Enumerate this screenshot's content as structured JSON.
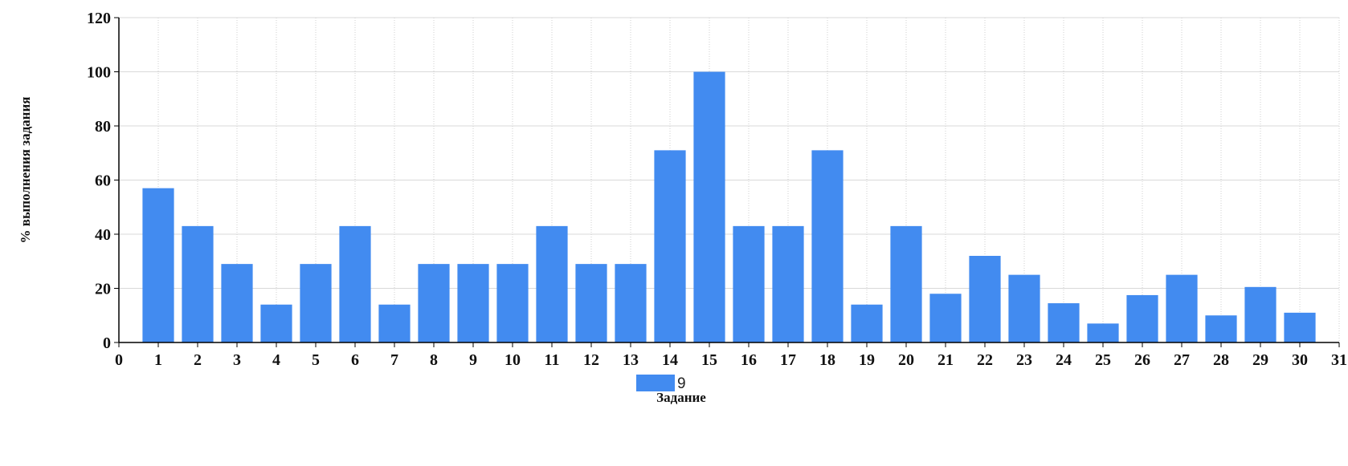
{
  "chart_data": {
    "type": "bar",
    "title": "",
    "xlabel": "Задание",
    "ylabel": "% выполнения задания",
    "xlim": [
      0,
      31
    ],
    "ylim": [
      0,
      120
    ],
    "x_ticks": [
      0,
      1,
      2,
      3,
      4,
      5,
      6,
      7,
      8,
      9,
      10,
      11,
      12,
      13,
      14,
      15,
      16,
      17,
      18,
      19,
      20,
      21,
      22,
      23,
      24,
      25,
      26,
      27,
      28,
      29,
      30,
      31
    ],
    "y_ticks": [
      0,
      20,
      40,
      60,
      80,
      100,
      120
    ],
    "grid": true,
    "legend_position": "bottom",
    "series": [
      {
        "name": "9",
        "color": "#428bf0",
        "x": [
          1,
          2,
          3,
          4,
          5,
          6,
          7,
          8,
          9,
          10,
          11,
          12,
          13,
          14,
          15,
          16,
          17,
          18,
          19,
          20,
          21,
          22,
          23,
          24,
          25,
          26,
          27,
          28,
          29,
          30
        ],
        "values": [
          57,
          43,
          29,
          14,
          29,
          43,
          14,
          29,
          29,
          29,
          43,
          29,
          29,
          71,
          100,
          43,
          43,
          71,
          14,
          43,
          18,
          32,
          25,
          14.5,
          7,
          17.5,
          25,
          10,
          20.5,
          11
        ]
      }
    ]
  }
}
